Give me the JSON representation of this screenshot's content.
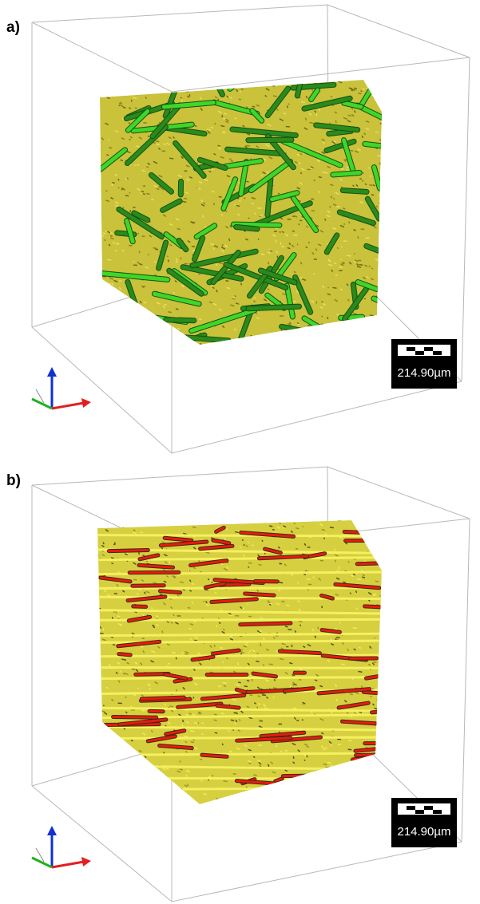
{
  "panels": [
    {
      "label": "a)",
      "scale_bar": "214.90µm"
    },
    {
      "label": "b)",
      "scale_bar": "214.90µm"
    }
  ]
}
